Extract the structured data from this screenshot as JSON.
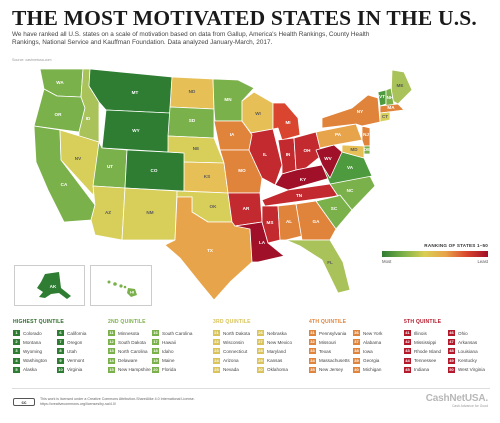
{
  "title": "THE MOST MOTIVATED STATES IN THE U.S.",
  "subtitle": "We have ranked all U.S. states on a scale of motivation based on data from Gallup, America's Health Rankings, County Health Rankings, National Service and Kauffman Foundation. Data analyzed January-March, 2017.",
  "source": "Source: cashnetusa.com",
  "legend": {
    "title": "RANKING OF STATES 1–50",
    "low_label": "Most",
    "high_label": "Least"
  },
  "colors": {
    "q1": "#2e7d32",
    "q2": "#7bb14a",
    "q3": "#d9c35a",
    "q4": "#e0843c",
    "q5": "#b3192b"
  },
  "map_labels": {
    "WA": "WA",
    "OR": "OR",
    "CA": "CA",
    "ID": "ID",
    "NV": "NV",
    "MT": "MT",
    "WY": "WY",
    "UT": "UT",
    "AZ": "AZ",
    "CO": "CO",
    "NM": "NM",
    "ND": "ND",
    "SD": "SD",
    "NE": "NE",
    "KS": "KS",
    "OK": "OK",
    "TX": "TX",
    "MN": "MN",
    "IA": "IA",
    "MO": "MO",
    "AR": "AR",
    "LA": "LA",
    "WI": "WI",
    "IL": "IL",
    "MI": "MI",
    "IN": "IN",
    "OH": "OH",
    "KY": "KY",
    "TN": "TN",
    "MS": "MS",
    "AL": "AL",
    "GA": "GA",
    "FL": "FL",
    "SC": "SC",
    "NC": "NC",
    "VA": "VA",
    "WV": "WV",
    "PA": "PA",
    "NY": "NY",
    "ME": "ME",
    "VT": "VT",
    "NH": "NH",
    "MA": "MA",
    "CT": "CT",
    "NJ": "NJ",
    "DE": "DE",
    "MD": "MD",
    "AK": "AK",
    "HI": "HI"
  },
  "quintiles": [
    {
      "heading": "HIGHEST QUINTILE",
      "items": [
        {
          "rank": "1",
          "state": "Colorado"
        },
        {
          "rank": "6",
          "state": "California"
        },
        {
          "rank": "2",
          "state": "Montana"
        },
        {
          "rank": "7",
          "state": "Oregon"
        },
        {
          "rank": "3",
          "state": "Wyoming"
        },
        {
          "rank": "8",
          "state": "Utah"
        },
        {
          "rank": "4",
          "state": "Washington"
        },
        {
          "rank": "9",
          "state": "Vermont"
        },
        {
          "rank": "5",
          "state": "Alaska"
        },
        {
          "rank": "10",
          "state": "Virginia"
        }
      ]
    },
    {
      "heading": "2ND QUINTILE",
      "items": [
        {
          "rank": "11",
          "state": "Minnesota"
        },
        {
          "rank": "16",
          "state": "South Carolina"
        },
        {
          "rank": "12",
          "state": "South Dakota"
        },
        {
          "rank": "17",
          "state": "Hawaii"
        },
        {
          "rank": "13",
          "state": "North Carolina"
        },
        {
          "rank": "18",
          "state": "Idaho"
        },
        {
          "rank": "14",
          "state": "Delaware"
        },
        {
          "rank": "19",
          "state": "Maine"
        },
        {
          "rank": "15",
          "state": "New Hampshire"
        },
        {
          "rank": "20",
          "state": "Florida"
        }
      ]
    },
    {
      "heading": "3RD QUINTILE",
      "items": [
        {
          "rank": "21",
          "state": "North Dakota"
        },
        {
          "rank": "26",
          "state": "Nebraska"
        },
        {
          "rank": "22",
          "state": "Wisconsin"
        },
        {
          "rank": "27",
          "state": "New Mexico"
        },
        {
          "rank": "23",
          "state": "Connecticut"
        },
        {
          "rank": "28",
          "state": "Maryland"
        },
        {
          "rank": "24",
          "state": "Arizona"
        },
        {
          "rank": "29",
          "state": "Kansas"
        },
        {
          "rank": "25",
          "state": "Nevada"
        },
        {
          "rank": "30",
          "state": "Oklahoma"
        }
      ]
    },
    {
      "heading": "4TH QUINTILE",
      "items": [
        {
          "rank": "31",
          "state": "Pennsylvania"
        },
        {
          "rank": "36",
          "state": "New York"
        },
        {
          "rank": "32",
          "state": "Missouri"
        },
        {
          "rank": "37",
          "state": "Alabama"
        },
        {
          "rank": "33",
          "state": "Texas"
        },
        {
          "rank": "38",
          "state": "Iowa"
        },
        {
          "rank": "34",
          "state": "Massachusetts"
        },
        {
          "rank": "39",
          "state": "Georgia"
        },
        {
          "rank": "35",
          "state": "New Jersey"
        },
        {
          "rank": "40",
          "state": "Michigan"
        }
      ]
    },
    {
      "heading": "5TH QUINTILE",
      "items": [
        {
          "rank": "41",
          "state": "Illinois"
        },
        {
          "rank": "46",
          "state": "Ohio"
        },
        {
          "rank": "42",
          "state": "Mississippi"
        },
        {
          "rank": "47",
          "state": "Arkansas"
        },
        {
          "rank": "43",
          "state": "Rhode Island"
        },
        {
          "rank": "48",
          "state": "Louisiana"
        },
        {
          "rank": "44",
          "state": "Tennessee"
        },
        {
          "rank": "49",
          "state": "Kentucky"
        },
        {
          "rank": "45",
          "state": "Indiana"
        },
        {
          "rank": "50",
          "state": "West Virginia"
        }
      ]
    }
  ],
  "footer": {
    "cc": "cc",
    "license": "This work is licensed under a Creative Commons Attribution-ShareAlike 4.0 International License. https://creativecommons.org/licenses/by-sa/4.0/",
    "brand_main": "CashNet",
    "brand_suffix": "USA.",
    "brand_tagline": "Cash Advance for Good"
  }
}
